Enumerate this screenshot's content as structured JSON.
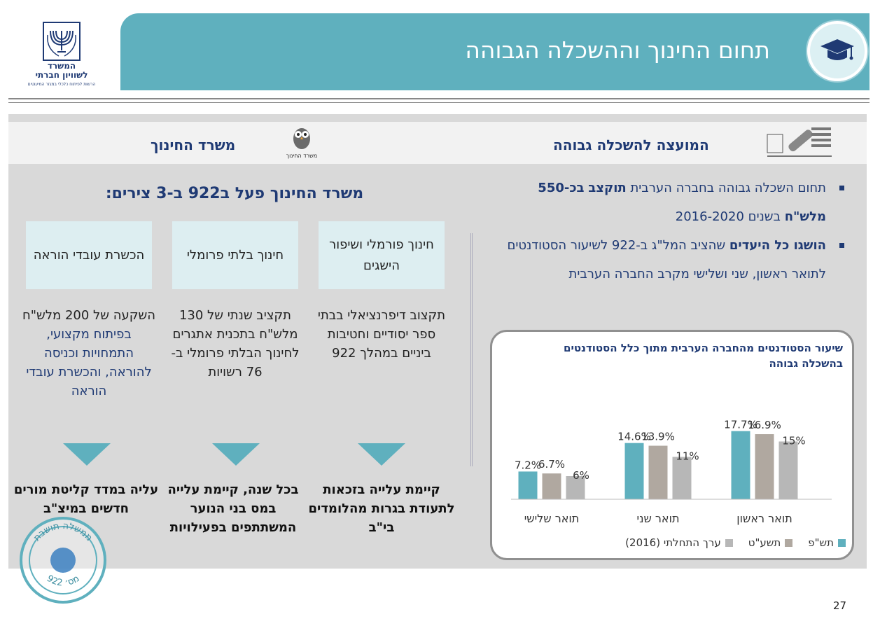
{
  "header": {
    "title": "תחום החינוך וההשכלה הגבוהה",
    "cap_icon": "graduation-cap-icon",
    "accent": "#5fb0be"
  },
  "logo": {
    "line1": "המשרד",
    "line2": "לשוויון חברתי",
    "tagline": "הרשות לפיתוח כלכלי במגזר המיעוטים",
    "emblem_icon": "menorah-emblem-icon"
  },
  "right_section": {
    "title": "המועצה להשכלה גבוהה",
    "logo_icon": "council-higher-education-logo",
    "bullets": [
      {
        "parts": [
          {
            "text": "תחום השכלה גבוהה בחברה הערבית ",
            "bold": false
          },
          {
            "text": "תוקצב",
            "bold": true
          },
          {
            "text": " ",
            "bold": false
          },
          {
            "text": "בכ-550 מלש\"ח",
            "bold": true
          },
          {
            "text": " בשנים 2016-2020",
            "bold": false
          }
        ]
      },
      {
        "parts": [
          {
            "text": "הושגו כל היעדים",
            "bold": true
          },
          {
            "text": " שהציב המל\"ג ב-922 לשיעור הסטודנטים לתואר ראשון, שני ושלישי מקרב החברה הערבית",
            "bold": false
          }
        ]
      }
    ]
  },
  "left_section": {
    "title": "משרד החינוך",
    "logo_caption": "משרד החינוך",
    "logo_icon": "owl-logo-icon",
    "subtitle": "משרד החינוך פעל ב922 ב-3 צירים:",
    "columns": [
      {
        "box": "חינוך פורמלי ושיפור הישגים",
        "desc": [
          {
            "text": "תקצוב דיפרנציאלי בבתי ספר יסודיים וחטיבות ביניים במהלך 922",
            "blue": false
          }
        ],
        "result": "קיימת עלייה בזכאות לתעודת בגרות מהלומדים בי\"ב"
      },
      {
        "box": "חינוך בלתי פרומלי",
        "desc": [
          {
            "text": "תקציב שנתי של 130 מלש\"ח בתכנית אתגרים לחינוך הבלתי פרומלי ב- 76 רשויות",
            "blue": false
          }
        ],
        "result": "בכל שנה, קיימת עלייה במס בני הנוער המשתתפים בפעילויות"
      },
      {
        "box": "הכשרת עובדי הוראה",
        "desc": [
          {
            "text": "השקעה של 200 מלש\"ח ",
            "blue": false
          },
          {
            "text": "בפיתוח מקצועי, התמחויות וכניסה להוראה, והכשרת עובדי הוראה",
            "blue": true
          }
        ],
        "result": "עליה במדד קליטת מורים חדשים במיצ\"ב"
      }
    ]
  },
  "chart_data": {
    "type": "bar",
    "title": "שיעור הסטודנטים מהחברה הערבית מתוך כלל הסטודנטים בהשכלה גבוהה",
    "categories": [
      "תואר ראשון",
      "תואר שני",
      "תואר שלישי"
    ],
    "series": [
      {
        "name": "תש\"פ",
        "values": [
          17.7,
          14.6,
          7.2
        ],
        "labels": [
          "17.7%",
          "14.6%",
          "7.2%"
        ],
        "color": "#5fb0be"
      },
      {
        "name": "תשע\"ט",
        "values": [
          16.9,
          13.9,
          6.7
        ],
        "labels": [
          "16.9%",
          "13.9%",
          "6.7%"
        ],
        "color": "#b0a8a0"
      },
      {
        "name": "ערך התחלתי (2016)",
        "values": [
          15,
          11,
          6
        ],
        "labels": [
          "15%",
          "11%",
          "6%"
        ],
        "color": "#b7b7b7"
      }
    ],
    "ylim": [
      0,
      20
    ],
    "grid": false,
    "legend": "bottom"
  },
  "stamp": {
    "text_top": "ממשלה תושבת",
    "text_bottom": "מס׳ 922",
    "icon": "seal-stamp-icon"
  },
  "page_number": "27"
}
